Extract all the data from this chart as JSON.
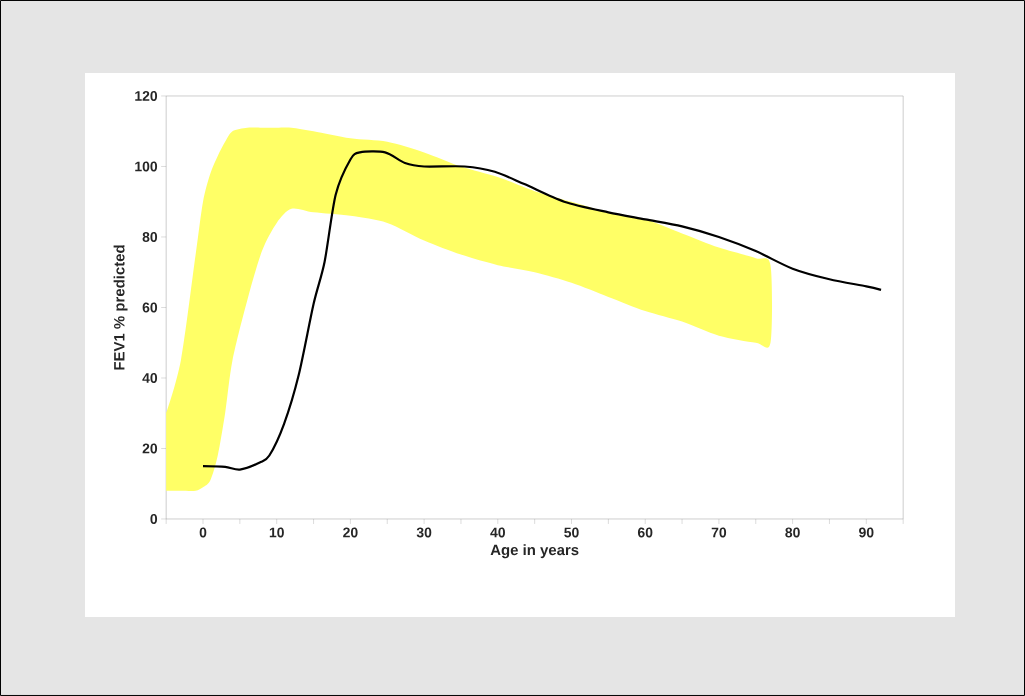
{
  "chart_data": {
    "type": "line",
    "xlabel": "Age in years",
    "ylabel": "FEV1 % predicted",
    "xlim": [
      -5,
      95
    ],
    "ylim": [
      0,
      120
    ],
    "xticks": [
      {
        "value": -5,
        "label": null
      },
      0,
      {
        "value": 5,
        "label": null
      },
      10,
      {
        "value": 15,
        "label": null
      },
      20,
      {
        "value": 25,
        "label": null
      },
      30,
      {
        "value": 35,
        "label": null
      },
      40,
      {
        "value": 45,
        "label": null
      },
      50,
      {
        "value": 55,
        "label": null
      },
      60,
      {
        "value": 65,
        "label": null
      },
      70,
      {
        "value": 75,
        "label": null
      },
      80,
      {
        "value": 85,
        "label": null
      },
      90,
      {
        "value": 95,
        "label": null
      }
    ],
    "yticks": [
      0,
      20,
      40,
      60,
      80,
      100,
      120
    ],
    "grid": false,
    "marker": "none",
    "line_style": "solid",
    "series": [
      {
        "type": "area",
        "color": "#ffff66",
        "x": [
          -5,
          -3,
          -1,
          0,
          1,
          2,
          3,
          4,
          6,
          8,
          10,
          12,
          15,
          20,
          25,
          30,
          35,
          40,
          45,
          50,
          55,
          60,
          65,
          70,
          75,
          77
        ],
        "values": [
          null,
          null,
          null,
          null,
          null,
          null,
          null,
          null,
          null,
          null,
          null,
          null,
          null,
          null,
          null,
          null,
          null,
          null,
          null,
          null,
          null,
          null,
          null,
          null,
          null,
          null
        ],
        "upper": [
          30,
          45,
          75,
          90,
          98,
          103,
          107,
          110,
          111,
          111,
          111,
          111,
          110,
          108,
          107,
          104,
          100,
          97,
          93,
          90,
          87,
          85,
          81,
          77,
          74,
          72
        ],
        "lower": [
          8,
          8,
          8,
          9,
          11,
          18,
          30,
          45,
          62,
          76,
          84,
          88,
          87,
          86,
          84,
          79,
          75,
          72,
          70,
          67,
          63,
          59,
          56,
          52,
          50,
          50
        ]
      },
      {
        "type": "line",
        "color": "#000000",
        "x": [
          0,
          3,
          5,
          7.7,
          9,
          11,
          13,
          15,
          16.5,
          18,
          20,
          21.3,
          24.7,
          27.4,
          30,
          35.5,
          39.6,
          43.6,
          49,
          55,
          60,
          65,
          70,
          75,
          80,
          85,
          90,
          92
        ],
        "values": [
          15,
          14.8,
          14,
          16,
          18,
          27,
          41,
          61,
          73,
          92,
          102,
          104,
          104,
          101,
          100,
          100,
          98.5,
          95,
          90,
          87,
          85,
          83,
          80,
          76,
          71,
          68,
          66,
          65
        ]
      }
    ]
  }
}
